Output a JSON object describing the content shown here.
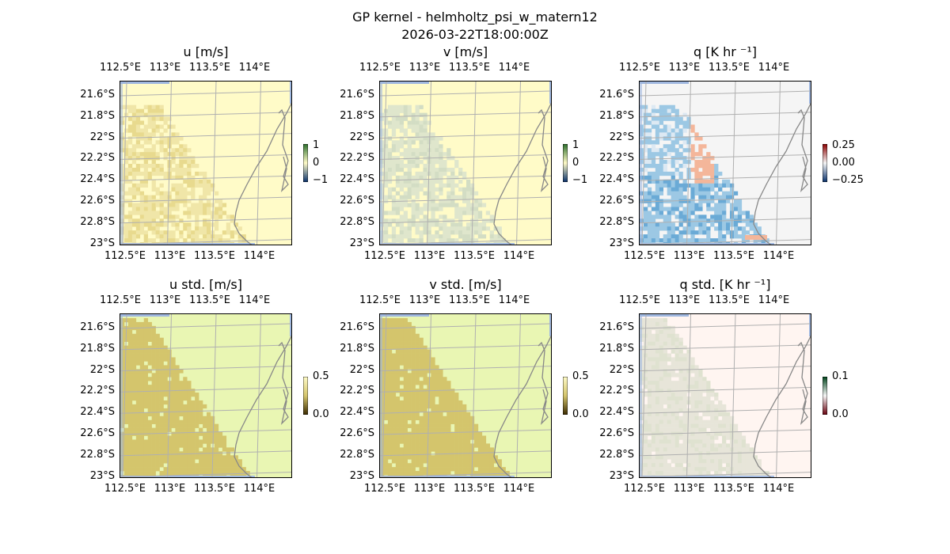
{
  "figure": {
    "title_line1": "GP kernel - helmholtz_psi_w_matern12",
    "title_line2": "2026-03-22T18:00:00Z"
  },
  "chart_data": [
    {
      "type": "heatmap",
      "title": "u [m/s]",
      "x_tick_labels": [
        "112.5°E",
        "113°E",
        "113.5°E",
        "114°E"
      ],
      "y_tick_labels": [
        "21.6°S",
        "21.8°S",
        "22°S",
        "22.2°S",
        "22.4°S",
        "22.6°S",
        "22.8°S",
        "23°S"
      ],
      "colorbar_ticks": [
        "1",
        "0",
        "−1"
      ],
      "colorbar_range": [
        -1,
        1
      ],
      "colors": {
        "background": "#fffbc8",
        "field": "#f0e6a8",
        "field_strong": "#e8da8e"
      },
      "grid": true
    },
    {
      "type": "heatmap",
      "title": "v [m/s]",
      "x_tick_labels": [
        "112.5°E",
        "113°E",
        "113.5°E",
        "114°E"
      ],
      "y_tick_labels": [
        "21.6°S",
        "21.8°S",
        "22°S",
        "22.2°S",
        "22.4°S",
        "22.6°S",
        "22.8°S",
        "23°S"
      ],
      "colorbar_ticks": [
        "1",
        "0",
        "−1"
      ],
      "colorbar_range": [
        -1,
        1
      ],
      "colors": {
        "background": "#fffbc8",
        "field": "#dfe6cc",
        "field_strong": "#d3ddc4"
      },
      "grid": true
    },
    {
      "type": "heatmap",
      "title": "q [K hr ⁻¹]",
      "x_tick_labels": [
        "112.5°E",
        "113°E",
        "113.5°E",
        "114°E"
      ],
      "y_tick_labels": [
        "21.6°S",
        "21.8°S",
        "22°S",
        "22.2°S",
        "22.4°S",
        "22.6°S",
        "22.8°S",
        "23°S"
      ],
      "colorbar_ticks": [
        "0.25",
        "0.00",
        "−0.25"
      ],
      "colorbar_range": [
        -0.35,
        0.35
      ],
      "colors": {
        "background": "#f5f5f5",
        "positive": "#f4b69a",
        "negative": "#9cc8e4",
        "negative_strong": "#6aaad6"
      },
      "grid": true
    },
    {
      "type": "heatmap",
      "title": "u std. [m/s]",
      "x_tick_labels": [
        "112.5°E",
        "113°E",
        "113.5°E",
        "114°E"
      ],
      "y_tick_labels": [
        "21.6°S",
        "21.8°S",
        "22°S",
        "22.2°S",
        "22.4°S",
        "22.6°S",
        "22.8°S",
        "23°S"
      ],
      "colorbar_ticks": [
        "0.5",
        "0.0"
      ],
      "colorbar_range": [
        0,
        0.5
      ],
      "colors": {
        "background": "#e9f6b3",
        "field": "#d4c56c"
      },
      "grid": true
    },
    {
      "type": "heatmap",
      "title": "v std. [m/s]",
      "x_tick_labels": [
        "112.5°E",
        "113°E",
        "113.5°E",
        "114°E"
      ],
      "y_tick_labels": [
        "21.6°S",
        "21.8°S",
        "22°S",
        "22.2°S",
        "22.4°S",
        "22.6°S",
        "22.8°S",
        "23°S"
      ],
      "colorbar_ticks": [
        "0.5",
        "0.0"
      ],
      "colorbar_range": [
        0,
        0.5
      ],
      "colors": {
        "background": "#e9f6b3",
        "field": "#d4c56c"
      },
      "grid": true
    },
    {
      "type": "heatmap",
      "title": "q std. [K hr ⁻¹]",
      "x_tick_labels": [
        "112.5°E",
        "113°E",
        "113.5°E",
        "114°E"
      ],
      "y_tick_labels": [
        "21.6°S",
        "21.8°S",
        "22°S",
        "22.2°S",
        "22.4°S",
        "22.6°S",
        "22.8°S",
        "23°S"
      ],
      "colorbar_ticks": [
        "0.1",
        "0.0"
      ],
      "colorbar_range": [
        0,
        0.1
      ],
      "colors": {
        "background": "#fff5f1",
        "field": "#e7e5d9",
        "field_strong": "#dfe2d0"
      },
      "grid": true
    }
  ],
  "map_colors": {
    "ocean_edge": "#a0b8e0",
    "coast": "#888888",
    "grid": "#b0b0b0"
  }
}
